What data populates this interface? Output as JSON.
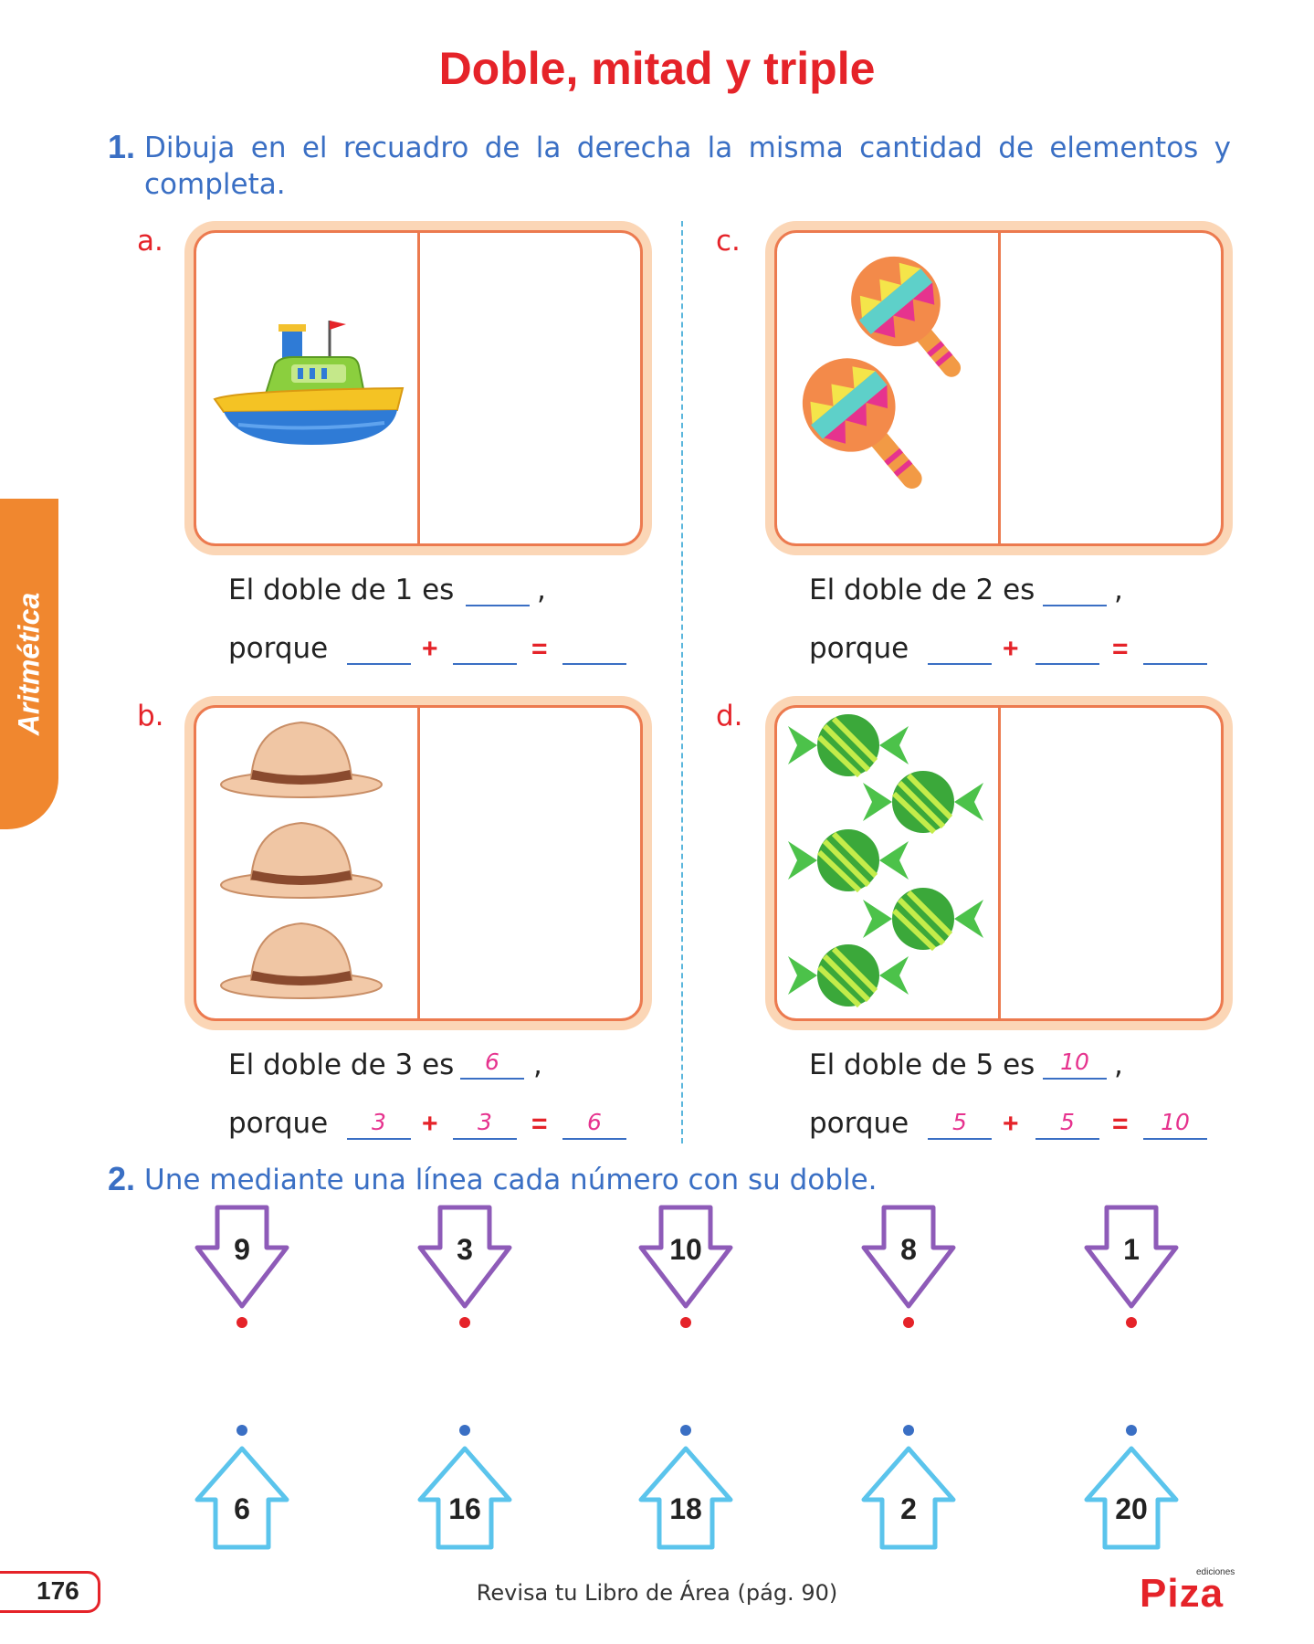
{
  "title": "Doble, mitad y triple",
  "side_tab": "Aritmética",
  "exercise1": {
    "number": "1.",
    "instruction_line1": "Dibuja en el recuadro de la derecha la misma cantidad de elementos y",
    "instruction_line2": "completa.",
    "items": [
      {
        "letter": "a.",
        "item_icon": "toy-boat",
        "count": 1,
        "sentence": "El doble de 1 es",
        "answer": "",
        "porque": "porque",
        "add1": "",
        "add2": "",
        "result": ""
      },
      {
        "letter": "c.",
        "item_icon": "maraca",
        "count": 2,
        "sentence": "El doble de 2 es",
        "answer": "",
        "porque": "porque",
        "add1": "",
        "add2": "",
        "result": ""
      },
      {
        "letter": "b.",
        "item_icon": "hat",
        "count": 3,
        "sentence": "El doble de 3 es",
        "answer": "6",
        "porque": "porque",
        "add1": "3",
        "add2": "3",
        "result": "6"
      },
      {
        "letter": "d.",
        "item_icon": "candy",
        "count": 5,
        "sentence": "El doble de 5 es",
        "answer": "10",
        "porque": "porque",
        "add1": "5",
        "add2": "5",
        "result": "10"
      }
    ],
    "comma": ",",
    "plus": "+",
    "equals": "="
  },
  "exercise2": {
    "number": "2.",
    "instruction": "Une mediante una línea cada número con su doble.",
    "top_numbers": [
      "9",
      "3",
      "10",
      "8",
      "1"
    ],
    "bottom_numbers": [
      "6",
      "16",
      "18",
      "2",
      "20"
    ]
  },
  "footer": {
    "page_number": "176",
    "reference": "Revisa tu Libro de Área (pág. 90)",
    "logo_small": "ediciones",
    "logo_big": "Piza"
  },
  "colors": {
    "title_red": "#e52329",
    "instruction_blue": "#3a6fc4",
    "tab_orange": "#f0872f",
    "panel_border": "#ec7a4f",
    "panel_fill": "#fbd6b6",
    "answer_pink": "#e6338e",
    "arrow_purple": "#8e5bb8",
    "arrow_cyan": "#5bc4ec"
  }
}
